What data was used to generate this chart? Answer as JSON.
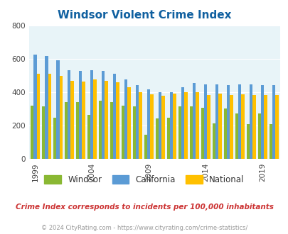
{
  "title": "Windsor Violent Crime Index",
  "subtitle": "Crime Index corresponds to incidents per 100,000 inhabitants",
  "copyright": "© 2024 CityRating.com - https://www.cityrating.com/crime-statistics/",
  "years": [
    1999,
    2000,
    2001,
    2002,
    2003,
    2004,
    2005,
    2006,
    2007,
    2008,
    2009,
    2010,
    2011,
    2012,
    2013,
    2014,
    2015,
    2016,
    2017,
    2018,
    2019,
    2020
  ],
  "windsor": [
    320,
    315,
    250,
    340,
    340,
    265,
    350,
    340,
    320,
    315,
    145,
    245,
    250,
    315,
    315,
    310,
    215,
    305,
    275,
    210,
    275,
    210
  ],
  "california": [
    625,
    620,
    595,
    535,
    530,
    535,
    530,
    510,
    480,
    445,
    420,
    400,
    400,
    430,
    455,
    450,
    450,
    445,
    450,
    450,
    445,
    445
  ],
  "national": [
    510,
    510,
    500,
    470,
    465,
    480,
    470,
    460,
    430,
    400,
    390,
    380,
    395,
    400,
    400,
    385,
    395,
    385,
    390,
    385,
    385,
    385
  ],
  "windsor_color": "#8ab833",
  "california_color": "#5b9bd5",
  "national_color": "#ffc000",
  "bg_color": "#e8f4f8",
  "title_color": "#1060a0",
  "subtitle_color": "#cc3333",
  "copyright_color": "#999999",
  "ylim": [
    0,
    800
  ],
  "yticks": [
    0,
    200,
    400,
    600,
    800
  ],
  "tick_years": [
    1999,
    2004,
    2009,
    2014,
    2019
  ]
}
